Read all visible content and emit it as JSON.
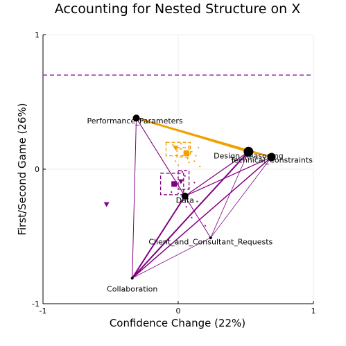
{
  "chart_data": {
    "type": "scatter",
    "title": "Accounting for Nested Structure on X",
    "xlabel": "Confidence Change (22%)",
    "ylabel": "First/Second Game (26%)",
    "xlim": [
      -1,
      1
    ],
    "ylim": [
      -1,
      1
    ],
    "xticks": [
      "-1",
      "0",
      "1"
    ],
    "yticks": [
      "-1",
      "0",
      "1"
    ],
    "grid": true,
    "threshold_line": {
      "y": 0.7,
      "color": "#8b1fa9",
      "style": "dashed"
    },
    "colors": {
      "purple": "#800080",
      "orange": "#f0a000",
      "node": "#000000",
      "grid": "#eeeeee"
    },
    "nodes": [
      {
        "label": "Performance_Parameters",
        "x": -0.31,
        "y": 0.38,
        "size": 5,
        "label_dx": -0.01,
        "label_dy": -0.04
      },
      {
        "label": "Design_Reasoning",
        "x": 0.52,
        "y": 0.13,
        "size": 7,
        "label_dx": 0.0,
        "label_dy": -0.05
      },
      {
        "label": "Technical_Constraints",
        "x": 0.69,
        "y": 0.09,
        "size": 6,
        "label_dx": 0.0,
        "label_dy": -0.04
      },
      {
        "label": "Data",
        "x": 0.05,
        "y": -0.2,
        "size": 5,
        "label_dx": 0.0,
        "label_dy": -0.05
      },
      {
        "label": "Client_and_Consultant_Requests",
        "x": 0.24,
        "y": -0.51,
        "size": 2,
        "label_dx": 0.0,
        "label_dy": -0.05
      },
      {
        "label": "Collaboration",
        "x": -0.34,
        "y": -0.81,
        "size": 2,
        "label_dx": 0.0,
        "label_dy": -0.1
      }
    ],
    "edges": [
      {
        "from": "Performance_Parameters",
        "to": "Design_Reasoning",
        "color": "orange",
        "width": 2.5
      },
      {
        "from": "Performance_Parameters",
        "to": "Technical_Constraints",
        "color": "orange",
        "width": 2.5
      },
      {
        "from": "Design_Reasoning",
        "to": "Technical_Constraints",
        "color": "orange",
        "width": 1.5
      },
      {
        "from": "Design_Reasoning",
        "to": "Data",
        "color": "orange",
        "width": 1.0
      },
      {
        "from": "Collaboration",
        "to": "Design_Reasoning",
        "color": "purple",
        "width": 2.0
      },
      {
        "from": "Collaboration",
        "to": "Technical_Constraints",
        "color": "purple",
        "width": 1.5
      },
      {
        "from": "Collaboration",
        "to": "Data",
        "color": "purple",
        "width": 2.0
      },
      {
        "from": "Collaboration",
        "to": "Performance_Parameters",
        "color": "purple",
        "width": 1.0
      },
      {
        "from": "Collaboration",
        "to": "Client_and_Consultant_Requests",
        "color": "purple",
        "width": 0.8
      },
      {
        "from": "Performance_Parameters",
        "to": "Data",
        "color": "purple",
        "width": 1.0
      },
      {
        "from": "Performance_Parameters",
        "to": "Client_and_Consultant_Requests",
        "color": "purple",
        "width": 0.8
      },
      {
        "from": "Data",
        "to": "Technical_Constraints",
        "color": "purple",
        "width": 1.2
      },
      {
        "from": "Data",
        "to": "Design_Reasoning",
        "color": "purple",
        "width": 1.2
      },
      {
        "from": "Client_and_Consultant_Requests",
        "to": "Technical_Constraints",
        "color": "purple",
        "width": 0.8
      },
      {
        "from": "Client_and_Consultant_Requests",
        "to": "Design_Reasoning",
        "color": "purple",
        "width": 0.8
      },
      {
        "from": "Data",
        "to": "Client_and_Consultant_Requests",
        "color": "purple",
        "width": 0.8
      }
    ],
    "groups": [
      {
        "color": "orange",
        "mean": {
          "x": 0.06,
          "y": 0.12
        },
        "triangle": {
          "x": -0.02,
          "y": 0.16
        },
        "boxes": [
          {
            "x": [
              -0.09,
              0.09
            ],
            "y": [
              0.1,
              0.2
            ]
          },
          {
            "x": [
              -0.01,
              0.08
            ],
            "y": [
              0.09,
              0.16
            ]
          }
        ],
        "points": [
          [
            -0.04,
            0.18
          ],
          [
            0.02,
            0.19
          ],
          [
            0.08,
            0.17
          ],
          [
            0.1,
            0.13
          ],
          [
            0.13,
            0.1
          ],
          [
            0.03,
            0.1
          ],
          [
            0.08,
            0.05
          ],
          [
            0.0,
            0.03
          ],
          [
            0.12,
            0.06
          ],
          [
            0.16,
            0.02
          ],
          [
            0.05,
            0.13
          ],
          [
            0.02,
            0.15
          ],
          [
            0.15,
            0.16
          ],
          [
            0.07,
            0.08
          ],
          [
            -0.02,
            0.06
          ]
        ]
      },
      {
        "color": "purple",
        "mean": {
          "x": -0.03,
          "y": -0.11
        },
        "triangle": {
          "x": 0.02,
          "y": -0.09
        },
        "outlier_triangle": {
          "x": -0.53,
          "y": -0.26
        },
        "boxes": [
          {
            "x": [
              -0.13,
              0.04
            ],
            "y": [
              -0.19,
              -0.03
            ]
          },
          {
            "x": [
              0.0,
              0.08
            ],
            "y": [
              -0.15,
              -0.01
            ]
          }
        ],
        "points": [
          [
            0.05,
            -0.05
          ],
          [
            0.08,
            -0.14
          ],
          [
            0.0,
            -0.18
          ],
          [
            0.12,
            -0.1
          ],
          [
            0.06,
            -0.28
          ],
          [
            0.14,
            -0.24
          ],
          [
            0.1,
            -0.36
          ],
          [
            0.2,
            -0.42
          ],
          [
            -0.05,
            -0.17
          ],
          [
            0.03,
            -0.02
          ]
        ]
      }
    ]
  }
}
